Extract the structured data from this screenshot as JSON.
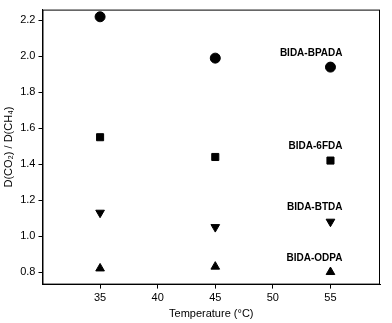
{
  "chart_data": {
    "type": "scatter",
    "x_label": "Temperature (°C)",
    "y_label": "D(CO₂) / D(CH₄)",
    "x": [
      35,
      45,
      55
    ],
    "series": [
      {
        "name": "BIDA-BPADA",
        "color": "#000000",
        "marker": "circle",
        "values": [
          2.22,
          1.99,
          1.94
        ]
      },
      {
        "name": "BIDA-6FDA",
        "color": "#000000",
        "marker": "square",
        "values": [
          1.55,
          1.44,
          1.42
        ]
      },
      {
        "name": "BIDA-BTDA",
        "color": "#000000",
        "marker": "triangle-down",
        "values": [
          1.13,
          1.05,
          1.08
        ]
      },
      {
        "name": "BIDA-ODPA",
        "color": "#000000",
        "marker": "triangle",
        "values": [
          0.82,
          0.83,
          0.8
        ]
      }
    ],
    "xlim": [
      30,
      59.3
    ],
    "xticks": [
      35,
      40,
      45,
      50,
      55
    ],
    "ylim": [
      0.73,
      2.26
    ],
    "yticks": [
      0.8,
      {
        "value": 1.0,
        "label": "1.0"
      },
      1.2,
      1.4,
      1.6,
      1.8,
      {
        "value": 2.0,
        "label": "2.0"
      },
      2.2
    ],
    "grid": false
  }
}
